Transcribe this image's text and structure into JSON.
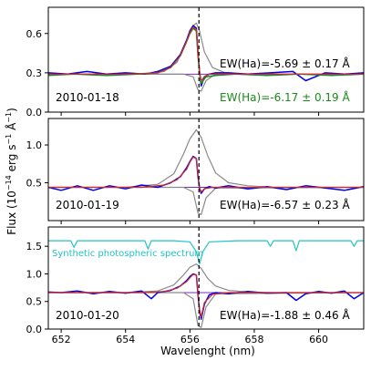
{
  "chart_data": {
    "type": "line",
    "xlabel": "Wavelenght (nm)",
    "ylabel": "Flux (10$^{-14}$ erg s$^{-1}$ Å$^{-1}$)",
    "ylabel_parts": {
      "base": "Flux (10",
      "exp1": "−14",
      "mid": " erg s",
      "exp2": "−1",
      "unit": " Å",
      "exp3": "−1",
      "close": ")"
    },
    "xlim": [
      651.6,
      661.4
    ],
    "xticks": [
      "652",
      "654",
      "656",
      "658",
      "660"
    ],
    "xtick_values": [
      652,
      654,
      656,
      658,
      660
    ],
    "vline_x": 656.28,
    "colors": {
      "observed": "#0000ee",
      "fit": "#d62728",
      "components": "#8a8a8a",
      "narrow": "#7b2fbe",
      "second": "#1a8a1a",
      "synthetic": "#22c4c4"
    },
    "panels": [
      {
        "date": "2010-01-18",
        "ylim": [
          0.0,
          0.8
        ],
        "yticks": [
          "0.0",
          "0.3",
          "0.6"
        ],
        "ytick_values": [
          0.0,
          0.3,
          0.6
        ],
        "annotations": [
          {
            "text": "EW(Ha)=-5.69 ±  0.17 Å",
            "color": "#000000"
          },
          {
            "text": "EW(Ha)=-6.17 ±  0.19 Å",
            "color": "#1a8a1a"
          }
        ],
        "continuum": 0.29,
        "observed": {
          "x": [
            651.6,
            652.2,
            652.8,
            653.4,
            654.0,
            654.6,
            655.0,
            655.4,
            655.7,
            655.9,
            656.0,
            656.1,
            656.2,
            656.25,
            656.3,
            656.35,
            656.45,
            656.6,
            656.8,
            657.2,
            657.8,
            658.5,
            659.2,
            659.6,
            660.2,
            660.8,
            661.4
          ],
          "y": [
            0.3,
            0.29,
            0.31,
            0.29,
            0.3,
            0.29,
            0.31,
            0.35,
            0.44,
            0.55,
            0.62,
            0.66,
            0.64,
            0.45,
            0.31,
            0.2,
            0.27,
            0.29,
            0.3,
            0.3,
            0.29,
            0.3,
            0.31,
            0.24,
            0.3,
            0.29,
            0.3
          ]
        },
        "second": {
          "x": [
            651.6,
            652.4,
            653.4,
            654.4,
            655.0,
            655.4,
            655.7,
            655.9,
            656.0,
            656.1,
            656.2,
            656.25,
            656.3,
            656.35,
            656.5,
            656.8,
            657.4,
            658.4,
            659.4,
            660.4,
            661.4
          ],
          "y": [
            0.28,
            0.29,
            0.28,
            0.29,
            0.3,
            0.34,
            0.43,
            0.54,
            0.6,
            0.64,
            0.62,
            0.43,
            0.3,
            0.22,
            0.27,
            0.28,
            0.29,
            0.28,
            0.29,
            0.28,
            0.29
          ]
        },
        "fit": {
          "x": [
            651.6,
            654.0,
            655.0,
            655.4,
            655.7,
            655.9,
            656.0,
            656.1,
            656.2,
            656.25,
            656.3,
            656.35,
            656.45,
            656.6,
            657.0,
            658.0,
            661.4
          ],
          "y": [
            0.29,
            0.29,
            0.3,
            0.34,
            0.43,
            0.54,
            0.61,
            0.65,
            0.63,
            0.45,
            0.31,
            0.24,
            0.27,
            0.29,
            0.29,
            0.29,
            0.29
          ]
        },
        "broad": {
          "x": [
            651.6,
            654.5,
            655.2,
            655.6,
            655.9,
            656.1,
            656.2,
            656.3,
            656.45,
            656.7,
            657.1,
            657.6,
            661.4
          ],
          "y": [
            0.29,
            0.29,
            0.31,
            0.38,
            0.55,
            0.66,
            0.68,
            0.62,
            0.46,
            0.34,
            0.3,
            0.29,
            0.29
          ]
        },
        "absorption": {
          "x": [
            651.6,
            655.8,
            656.1,
            656.25,
            656.35,
            656.5,
            656.8,
            661.4
          ],
          "y": [
            0.29,
            0.29,
            0.27,
            0.17,
            0.16,
            0.24,
            0.29,
            0.29
          ]
        }
      },
      {
        "date": "2010-01-19",
        "ylim": [
          0.0,
          1.35
        ],
        "yticks": [
          "0.5",
          "1.0"
        ],
        "ytick_values": [
          0.5,
          1.0
        ],
        "annotations": [
          {
            "text": "EW(Ha)=-6.57 ±  0.23 Å",
            "color": "#000000"
          }
        ],
        "continuum": 0.44,
        "observed": {
          "x": [
            651.6,
            652.0,
            652.5,
            653.0,
            653.5,
            654.0,
            654.5,
            655.0,
            655.4,
            655.7,
            655.9,
            656.0,
            656.1,
            656.2,
            656.25,
            656.3,
            656.35,
            656.45,
            656.6,
            656.8,
            657.2,
            657.8,
            658.4,
            659.0,
            659.6,
            660.2,
            660.8,
            661.4
          ],
          "y": [
            0.44,
            0.4,
            0.46,
            0.4,
            0.46,
            0.42,
            0.47,
            0.44,
            0.5,
            0.58,
            0.7,
            0.78,
            0.85,
            0.82,
            0.58,
            0.43,
            0.36,
            0.42,
            0.45,
            0.43,
            0.46,
            0.42,
            0.45,
            0.41,
            0.46,
            0.43,
            0.4,
            0.45
          ]
        },
        "fit": {
          "x": [
            651.6,
            654.5,
            655.2,
            655.6,
            655.9,
            656.0,
            656.1,
            656.2,
            656.25,
            656.3,
            656.35,
            656.45,
            656.7,
            657.2,
            658.0,
            661.4
          ],
          "y": [
            0.44,
            0.44,
            0.47,
            0.54,
            0.68,
            0.77,
            0.84,
            0.82,
            0.6,
            0.44,
            0.38,
            0.42,
            0.44,
            0.44,
            0.44,
            0.44
          ]
        },
        "broad": {
          "x": [
            651.6,
            654.0,
            655.0,
            655.5,
            655.8,
            656.0,
            656.2,
            656.35,
            656.55,
            656.8,
            657.2,
            657.8,
            658.6,
            661.4
          ],
          "y": [
            0.44,
            0.44,
            0.48,
            0.62,
            0.88,
            1.08,
            1.2,
            1.1,
            0.86,
            0.63,
            0.5,
            0.46,
            0.44,
            0.44
          ]
        },
        "absorption": {
          "x": [
            651.6,
            655.8,
            656.1,
            656.25,
            656.35,
            656.5,
            656.8,
            661.4
          ],
          "y": [
            0.44,
            0.44,
            0.38,
            0.1,
            0.08,
            0.3,
            0.43,
            0.44
          ]
        }
      },
      {
        "date": "2010-01-20",
        "ylim": [
          0.0,
          1.85
        ],
        "yticks": [
          "0.0",
          "0.5",
          "1.0",
          "1.5"
        ],
        "ytick_values": [
          0.0,
          0.5,
          1.0,
          1.5
        ],
        "annotations": [
          {
            "text": "EW(Ha)=-1.88 ±  0.46 Å",
            "color": "#000000"
          },
          {
            "text": "Synthetic photospheric spectrum",
            "color": "#22c4c4"
          }
        ],
        "continuum": 0.66,
        "observed": {
          "x": [
            651.6,
            652.0,
            652.5,
            653.0,
            653.5,
            654.0,
            654.5,
            654.8,
            655.0,
            655.4,
            655.7,
            655.9,
            656.0,
            656.1,
            656.2,
            656.25,
            656.3,
            656.35,
            656.45,
            656.6,
            656.8,
            657.2,
            657.8,
            658.4,
            659.0,
            659.3,
            659.6,
            660.0,
            660.4,
            660.8,
            661.1,
            661.4
          ],
          "y": [
            0.67,
            0.66,
            0.69,
            0.64,
            0.68,
            0.65,
            0.69,
            0.55,
            0.66,
            0.7,
            0.78,
            0.88,
            0.95,
            1.0,
            0.98,
            0.62,
            0.33,
            0.18,
            0.45,
            0.62,
            0.66,
            0.64,
            0.68,
            0.65,
            0.66,
            0.52,
            0.64,
            0.68,
            0.65,
            0.69,
            0.55,
            0.66
          ]
        },
        "fit": {
          "x": [
            651.6,
            654.5,
            655.2,
            655.6,
            655.9,
            656.0,
            656.1,
            656.2,
            656.25,
            656.3,
            656.35,
            656.45,
            656.7,
            657.2,
            658.0,
            661.4
          ],
          "y": [
            0.66,
            0.66,
            0.68,
            0.74,
            0.86,
            0.93,
            0.99,
            0.98,
            0.66,
            0.36,
            0.22,
            0.48,
            0.63,
            0.66,
            0.66,
            0.66
          ]
        },
        "broad": {
          "x": [
            651.6,
            654.0,
            655.0,
            655.5,
            655.8,
            656.0,
            656.2,
            656.35,
            656.55,
            656.8,
            657.2,
            657.8,
            658.6,
            661.4
          ],
          "y": [
            0.66,
            0.66,
            0.69,
            0.8,
            0.98,
            1.12,
            1.18,
            1.1,
            0.92,
            0.78,
            0.7,
            0.67,
            0.66,
            0.66
          ]
        },
        "absorption": {
          "x": [
            651.6,
            655.8,
            656.1,
            656.25,
            656.35,
            656.5,
            656.8,
            661.4
          ],
          "y": [
            0.66,
            0.66,
            0.55,
            0.06,
            0.03,
            0.4,
            0.64,
            0.66
          ]
        },
        "synthetic": {
          "x": [
            651.6,
            652.3,
            652.4,
            652.5,
            653.5,
            654.6,
            654.7,
            654.8,
            655.5,
            656.0,
            656.2,
            656.3,
            656.4,
            656.6,
            657.5,
            658.4,
            658.5,
            658.6,
            659.2,
            659.3,
            659.4,
            660.4,
            661.0,
            661.1,
            661.2,
            661.4
          ],
          "y": [
            1.6,
            1.6,
            1.48,
            1.6,
            1.6,
            1.6,
            1.45,
            1.6,
            1.6,
            1.58,
            1.4,
            1.18,
            1.4,
            1.58,
            1.6,
            1.6,
            1.5,
            1.6,
            1.6,
            1.42,
            1.6,
            1.6,
            1.6,
            1.5,
            1.6,
            1.6
          ]
        }
      }
    ]
  }
}
